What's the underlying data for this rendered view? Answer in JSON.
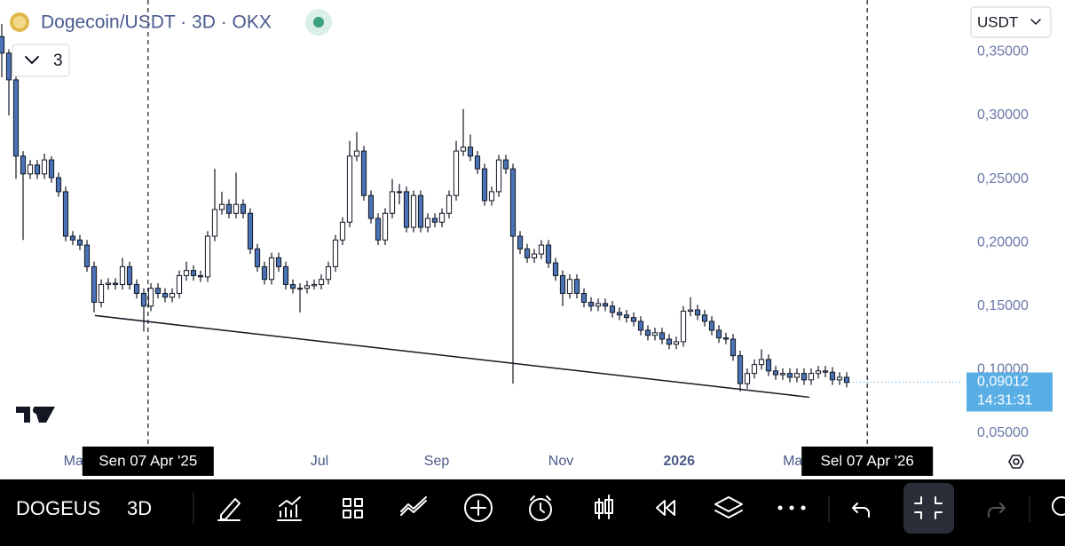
{
  "header": {
    "title": "Dogecoin/USDT · 3D · OKX",
    "indicators": "3",
    "currency": "USDT"
  },
  "chart_data": {
    "type": "candlestick",
    "candles": [
      [
        0.362,
        0.372,
        0.33,
        0.349
      ],
      [
        0.349,
        0.352,
        0.3,
        0.328
      ],
      [
        0.328,
        0.333,
        0.25,
        0.268
      ],
      [
        0.268,
        0.272,
        0.202,
        0.254
      ],
      [
        0.254,
        0.265,
        0.25,
        0.261
      ],
      [
        0.261,
        0.265,
        0.25,
        0.254
      ],
      [
        0.254,
        0.27,
        0.25,
        0.265
      ],
      [
        0.265,
        0.268,
        0.247,
        0.251
      ],
      [
        0.251,
        0.255,
        0.236,
        0.24
      ],
      [
        0.24,
        0.244,
        0.201,
        0.205
      ],
      [
        0.205,
        0.209,
        0.198,
        0.202
      ],
      [
        0.202,
        0.206,
        0.194,
        0.198
      ],
      [
        0.198,
        0.202,
        0.177,
        0.181
      ],
      [
        0.181,
        0.185,
        0.145,
        0.153
      ],
      [
        0.153,
        0.171,
        0.149,
        0.167
      ],
      [
        0.167,
        0.172,
        0.163,
        0.168
      ],
      [
        0.168,
        0.172,
        0.163,
        0.167
      ],
      [
        0.167,
        0.188,
        0.163,
        0.181
      ],
      [
        0.181,
        0.185,
        0.163,
        0.167
      ],
      [
        0.167,
        0.171,
        0.156,
        0.16
      ],
      [
        0.16,
        0.164,
        0.13,
        0.15
      ],
      [
        0.15,
        0.168,
        0.146,
        0.164
      ],
      [
        0.164,
        0.168,
        0.156,
        0.16
      ],
      [
        0.16,
        0.164,
        0.153,
        0.157
      ],
      [
        0.157,
        0.164,
        0.153,
        0.16
      ],
      [
        0.16,
        0.178,
        0.156,
        0.174
      ],
      [
        0.174,
        0.185,
        0.17,
        0.178
      ],
      [
        0.178,
        0.182,
        0.17,
        0.174
      ],
      [
        0.174,
        0.178,
        0.169,
        0.173
      ],
      [
        0.173,
        0.209,
        0.169,
        0.205
      ],
      [
        0.205,
        0.258,
        0.201,
        0.226
      ],
      [
        0.226,
        0.24,
        0.222,
        0.23
      ],
      [
        0.23,
        0.234,
        0.219,
        0.223
      ],
      [
        0.223,
        0.255,
        0.219,
        0.23
      ],
      [
        0.23,
        0.234,
        0.219,
        0.223
      ],
      [
        0.223,
        0.227,
        0.191,
        0.195
      ],
      [
        0.195,
        0.199,
        0.177,
        0.181
      ],
      [
        0.181,
        0.185,
        0.167,
        0.171
      ],
      [
        0.171,
        0.192,
        0.167,
        0.188
      ],
      [
        0.188,
        0.192,
        0.177,
        0.181
      ],
      [
        0.181,
        0.185,
        0.163,
        0.167
      ],
      [
        0.167,
        0.171,
        0.16,
        0.164
      ],
      [
        0.164,
        0.168,
        0.145,
        0.164
      ],
      [
        0.164,
        0.17,
        0.16,
        0.166
      ],
      [
        0.166,
        0.171,
        0.163,
        0.167
      ],
      [
        0.167,
        0.175,
        0.163,
        0.171
      ],
      [
        0.171,
        0.185,
        0.167,
        0.181
      ],
      [
        0.181,
        0.206,
        0.177,
        0.202
      ],
      [
        0.202,
        0.22,
        0.198,
        0.216
      ],
      [
        0.216,
        0.28,
        0.212,
        0.268
      ],
      [
        0.268,
        0.287,
        0.264,
        0.272
      ],
      [
        0.272,
        0.276,
        0.233,
        0.237
      ],
      [
        0.237,
        0.241,
        0.215,
        0.219
      ],
      [
        0.219,
        0.223,
        0.198,
        0.202
      ],
      [
        0.202,
        0.227,
        0.198,
        0.223
      ],
      [
        0.223,
        0.25,
        0.219,
        0.24
      ],
      [
        0.24,
        0.246,
        0.23,
        0.24
      ],
      [
        0.24,
        0.244,
        0.208,
        0.212
      ],
      [
        0.212,
        0.241,
        0.208,
        0.237
      ],
      [
        0.237,
        0.241,
        0.208,
        0.212
      ],
      [
        0.212,
        0.223,
        0.208,
        0.219
      ],
      [
        0.219,
        0.223,
        0.212,
        0.216
      ],
      [
        0.216,
        0.227,
        0.212,
        0.223
      ],
      [
        0.223,
        0.241,
        0.219,
        0.237
      ],
      [
        0.237,
        0.28,
        0.233,
        0.272
      ],
      [
        0.272,
        0.305,
        0.268,
        0.275
      ],
      [
        0.275,
        0.285,
        0.264,
        0.268
      ],
      [
        0.268,
        0.272,
        0.254,
        0.258
      ],
      [
        0.258,
        0.262,
        0.229,
        0.233
      ],
      [
        0.233,
        0.244,
        0.229,
        0.24
      ],
      [
        0.24,
        0.269,
        0.236,
        0.265
      ],
      [
        0.265,
        0.269,
        0.254,
        0.258
      ],
      [
        0.258,
        0.262,
        0.089,
        0.205
      ],
      [
        0.205,
        0.209,
        0.191,
        0.195
      ],
      [
        0.195,
        0.199,
        0.184,
        0.188
      ],
      [
        0.188,
        0.195,
        0.184,
        0.191
      ],
      [
        0.191,
        0.202,
        0.187,
        0.198
      ],
      [
        0.198,
        0.202,
        0.18,
        0.184
      ],
      [
        0.184,
        0.188,
        0.17,
        0.174
      ],
      [
        0.174,
        0.178,
        0.15,
        0.16
      ],
      [
        0.16,
        0.175,
        0.156,
        0.171
      ],
      [
        0.171,
        0.175,
        0.156,
        0.16
      ],
      [
        0.16,
        0.164,
        0.149,
        0.153
      ],
      [
        0.153,
        0.157,
        0.146,
        0.15
      ],
      [
        0.15,
        0.156,
        0.146,
        0.152
      ],
      [
        0.152,
        0.156,
        0.146,
        0.15
      ],
      [
        0.15,
        0.154,
        0.141,
        0.145
      ],
      [
        0.145,
        0.149,
        0.139,
        0.143
      ],
      [
        0.143,
        0.147,
        0.137,
        0.141
      ],
      [
        0.141,
        0.145,
        0.134,
        0.138
      ],
      [
        0.138,
        0.142,
        0.127,
        0.131
      ],
      [
        0.131,
        0.135,
        0.123,
        0.127
      ],
      [
        0.127,
        0.133,
        0.123,
        0.129
      ],
      [
        0.129,
        0.133,
        0.12,
        0.124
      ],
      [
        0.124,
        0.128,
        0.116,
        0.12
      ],
      [
        0.12,
        0.126,
        0.116,
        0.122
      ],
      [
        0.122,
        0.15,
        0.118,
        0.146
      ],
      [
        0.146,
        0.157,
        0.142,
        0.147
      ],
      [
        0.147,
        0.151,
        0.139,
        0.143
      ],
      [
        0.143,
        0.147,
        0.134,
        0.138
      ],
      [
        0.138,
        0.142,
        0.127,
        0.131
      ],
      [
        0.131,
        0.135,
        0.121,
        0.125
      ],
      [
        0.125,
        0.129,
        0.12,
        0.124
      ],
      [
        0.124,
        0.128,
        0.107,
        0.111
      ],
      [
        0.111,
        0.115,
        0.083,
        0.089
      ],
      [
        0.089,
        0.101,
        0.085,
        0.097
      ],
      [
        0.097,
        0.108,
        0.093,
        0.104
      ],
      [
        0.104,
        0.116,
        0.1,
        0.108
      ],
      [
        0.108,
        0.112,
        0.095,
        0.099
      ],
      [
        0.099,
        0.103,
        0.092,
        0.096
      ],
      [
        0.096,
        0.101,
        0.092,
        0.097
      ],
      [
        0.097,
        0.101,
        0.09,
        0.094
      ],
      [
        0.094,
        0.101,
        0.09,
        0.097
      ],
      [
        0.097,
        0.101,
        0.088,
        0.092
      ],
      [
        0.092,
        0.101,
        0.088,
        0.097
      ],
      [
        0.097,
        0.103,
        0.093,
        0.099
      ],
      [
        0.099,
        0.103,
        0.094,
        0.098
      ],
      [
        0.098,
        0.102,
        0.088,
        0.092
      ],
      [
        0.092,
        0.098,
        0.088,
        0.094
      ],
      [
        0.094,
        0.098,
        0.086,
        0.09
      ]
    ],
    "colors": {
      "up": "#ffffff",
      "down": "#4a72b5",
      "outline": "#131722"
    },
    "xlim": [
      -0.25,
      135.375
    ],
    "ylim": [
      0.0381,
      0.3908
    ],
    "xticks": [
      {
        "value": 10.1,
        "label": "Ma"
      },
      {
        "value": 44.75,
        "label": "Jul"
      },
      {
        "value": 61.25,
        "label": "Sep"
      },
      {
        "value": 78.75,
        "label": "Nov"
      },
      {
        "value": 95.4,
        "label": "2026"
      },
      {
        "value": 111.4,
        "label": "Ma"
      }
    ],
    "yticks": [
      {
        "value": 0.05,
        "label": "0,05000"
      },
      {
        "value": 0.1,
        "label": "0,10000"
      },
      {
        "value": 0.15,
        "label": "0,15000"
      },
      {
        "value": 0.2,
        "label": "0,20000"
      },
      {
        "value": 0.25,
        "label": "0,25000"
      },
      {
        "value": 0.3,
        "label": "0,30000"
      },
      {
        "value": 0.35,
        "label": "0,35000"
      }
    ],
    "trendline": {
      "x": [
        13.1,
        113.75
      ],
      "y": [
        0.1426,
        0.0783
      ]
    },
    "crosshairs": [
      {
        "value": 20.6,
        "label": "Sen 07 Apr '25"
      },
      {
        "value": 121.9,
        "label": "Sel 07 Apr '26"
      }
    ],
    "last_price": {
      "value": 0.09012,
      "label": "0,09012"
    },
    "countdown": "14:31:31"
  },
  "toolbar": {
    "symbol": "DOGEUS",
    "interval": "3D"
  }
}
